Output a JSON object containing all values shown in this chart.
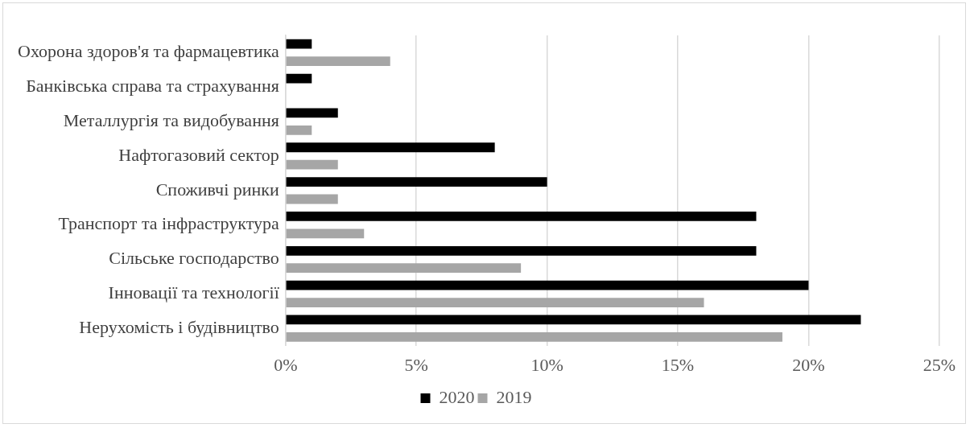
{
  "chart_data": {
    "type": "bar",
    "orientation": "horizontal",
    "categories": [
      "Охорона здоров'я та фармацевтика",
      "Банківська справа та страхування",
      "Металлургія та видобування",
      "Нафтогазовий сектор",
      "Споживчі ринки",
      "Транспорт та інфраструктура",
      "Сільське господарство",
      "Інновації та технології",
      "Нерухомість і будівництво"
    ],
    "series": [
      {
        "name": "2020",
        "color": "#000000",
        "values": [
          1,
          1,
          2,
          8,
          10,
          18,
          18,
          20,
          22
        ]
      },
      {
        "name": "2019",
        "color": "#a6a6a6",
        "values": [
          4,
          0,
          1,
          2,
          2,
          3,
          9,
          16,
          19
        ]
      }
    ],
    "xlim": [
      0,
      25
    ],
    "xticks": [
      {
        "value": 0,
        "label": "0%"
      },
      {
        "value": 5,
        "label": "5%"
      },
      {
        "value": 10,
        "label": "10%"
      },
      {
        "value": 15,
        "label": "15%"
      },
      {
        "value": 20,
        "label": "20%"
      },
      {
        "value": 25,
        "label": "25%"
      }
    ],
    "grid": "x",
    "legend": "bottom"
  }
}
